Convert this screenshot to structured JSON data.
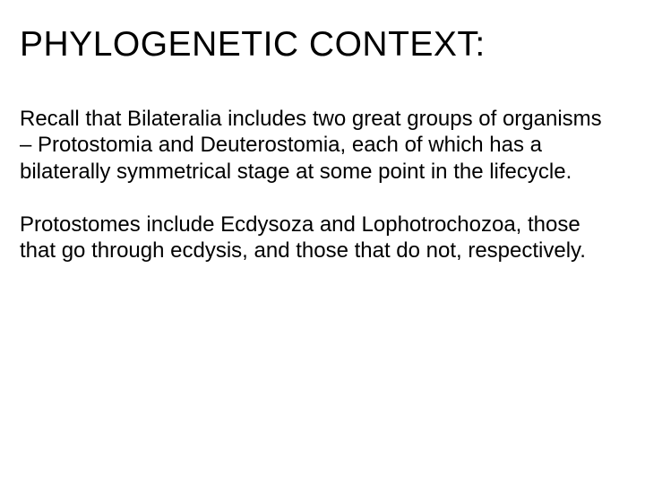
{
  "slide": {
    "title": "PHYLOGENETIC CONTEXT:",
    "paragraph1": "Recall that Bilateralia includes two great groups of organisms – Protostomia and Deuterostomia, each of which has a bilaterally symmetrical stage at some point in the lifecycle.",
    "paragraph2": "Protostomes include Ecdysoza and Lophotrochozoa, those that go through ecdysis, and those that do not, respectively.",
    "colors": {
      "background": "#ffffff",
      "text": "#000000"
    },
    "typography": {
      "title_fontsize": 39,
      "body_fontsize": 24,
      "font_family": "Arial"
    }
  }
}
